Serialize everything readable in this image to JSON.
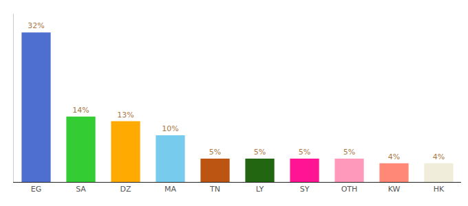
{
  "chart_data": {
    "type": "bar",
    "categories": [
      "EG",
      "SA",
      "DZ",
      "MA",
      "TN",
      "LY",
      "SY",
      "OTH",
      "KW",
      "HK"
    ],
    "values": [
      32,
      14,
      13,
      10,
      5,
      5,
      5,
      5,
      4,
      4
    ],
    "value_labels": [
      "32%",
      "14%",
      "13%",
      "10%",
      "5%",
      "5%",
      "5%",
      "5%",
      "4%",
      "4%"
    ],
    "colors": [
      "#4f6fd0",
      "#33cc33",
      "#ffaa00",
      "#77ccee",
      "#bb5511",
      "#226611",
      "#ff1493",
      "#ff99bb",
      "#ff8877",
      "#f0eedb"
    ],
    "ylim": [
      0,
      36
    ],
    "data_labels": true,
    "tick_labels": "x",
    "grid": false
  }
}
